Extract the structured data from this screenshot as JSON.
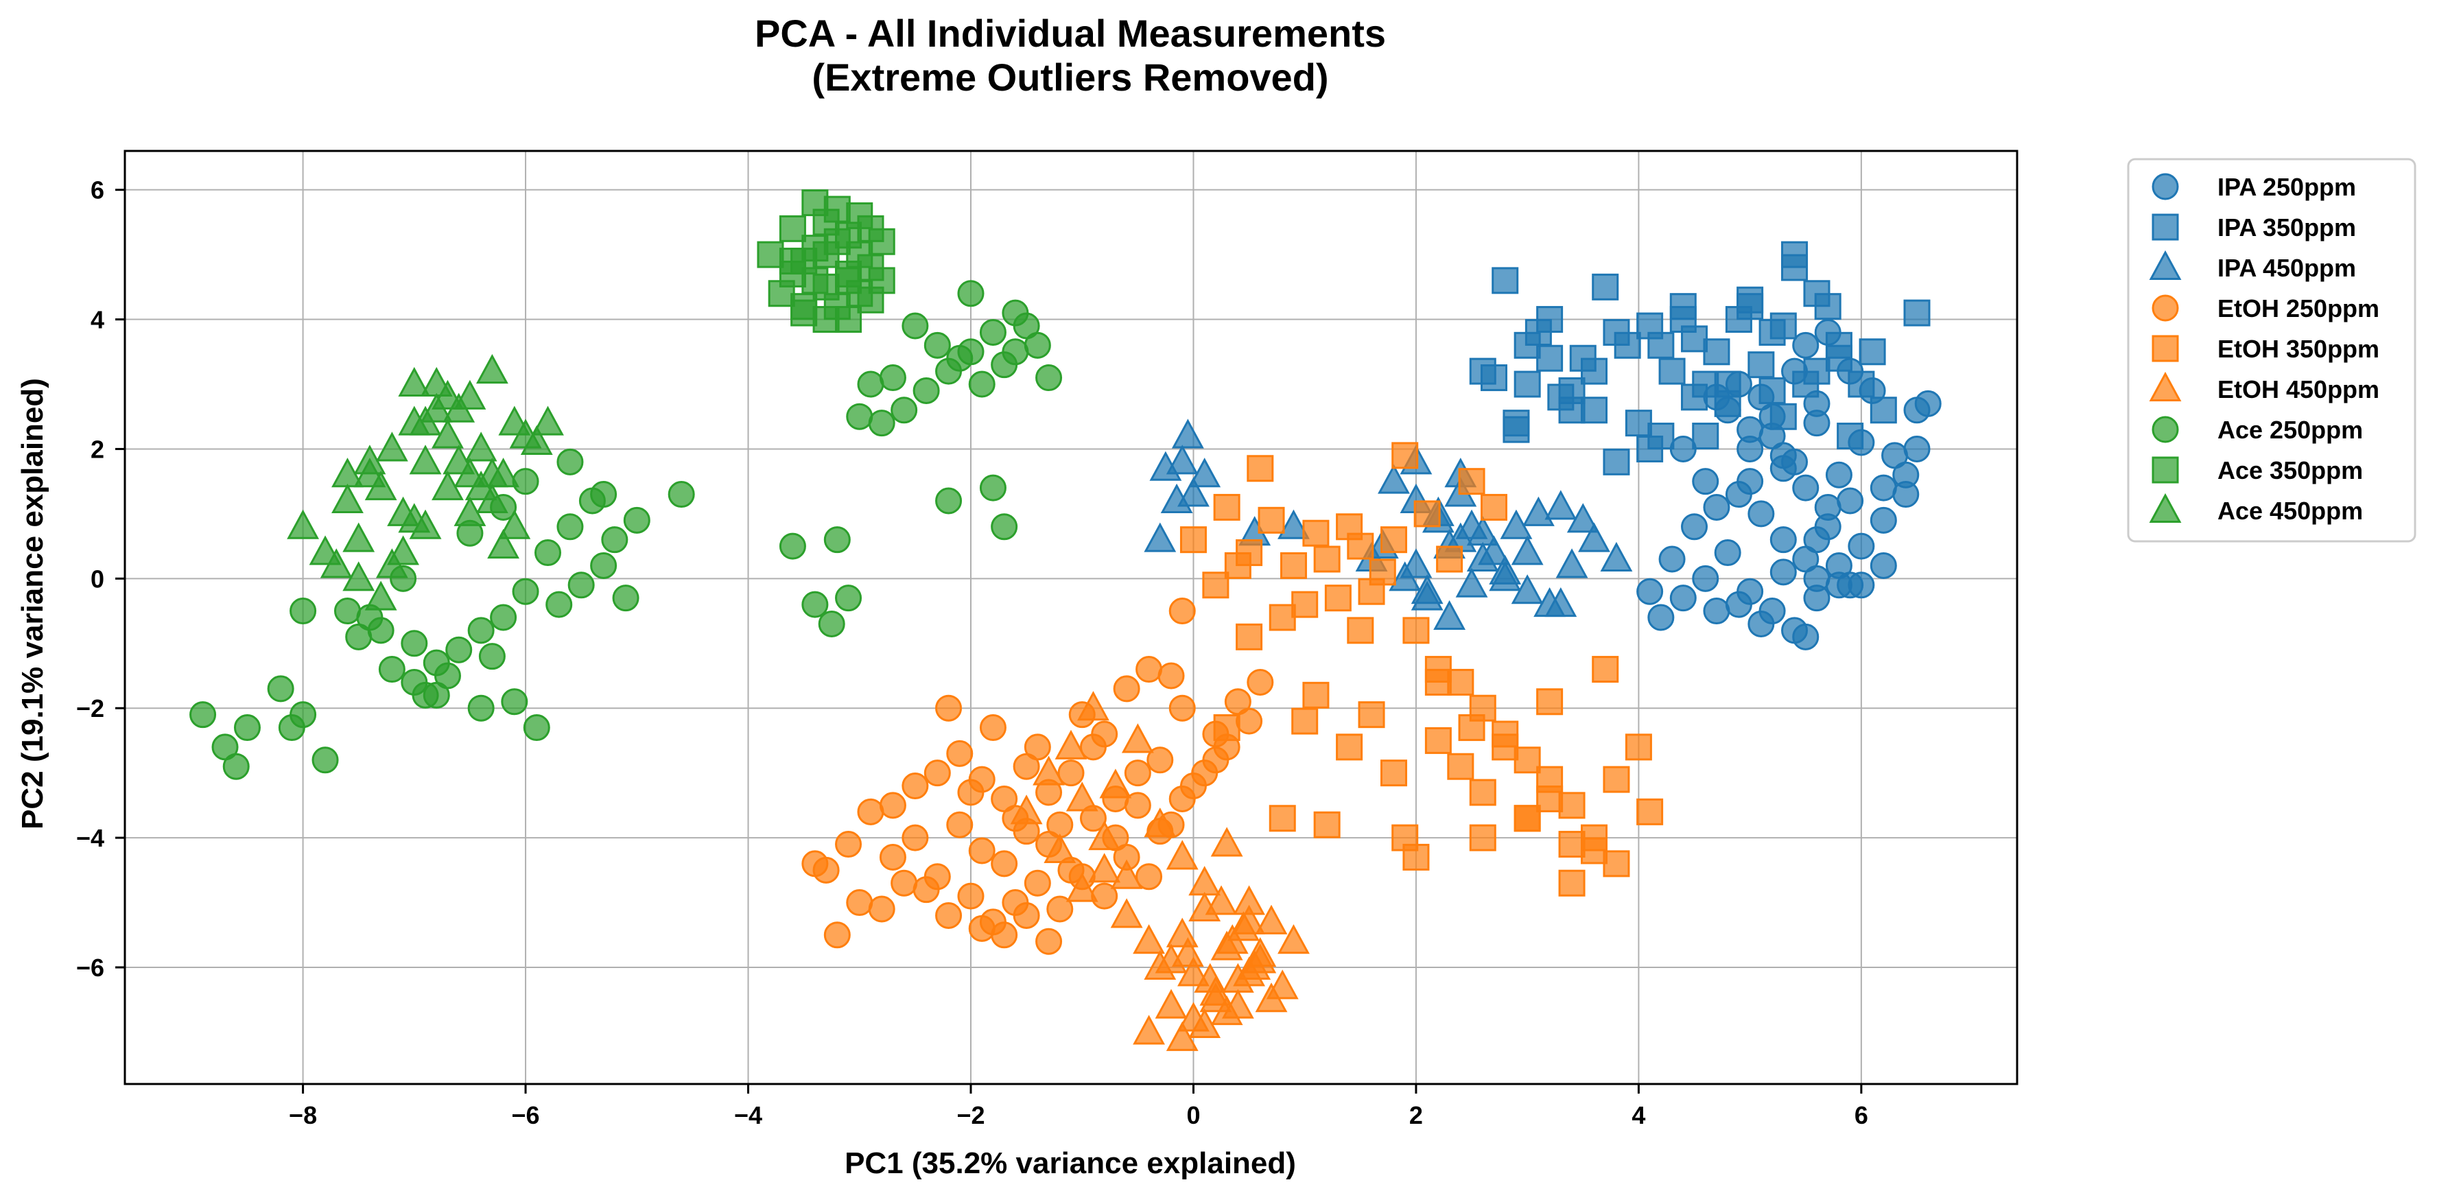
{
  "chart_data": {
    "type": "scatter",
    "title_line1": "PCA - All Individual Measurements",
    "title_line2": "(Extreme Outliers Removed)",
    "xlabel": "PC1 (35.2% variance explained)",
    "ylabel": "PC2 (19.1% variance explained)",
    "xlim": [
      -9.6,
      7.4
    ],
    "ylim": [
      -7.8,
      6.6
    ],
    "xticks": [
      -8,
      -6,
      -4,
      -2,
      0,
      2,
      4,
      6
    ],
    "yticks": [
      -6,
      -4,
      -2,
      0,
      2,
      4,
      6
    ],
    "grid": true,
    "legend_position": "outside-right",
    "colors": {
      "IPA": "#1f77b4",
      "EtOH": "#ff7f0e",
      "Ace": "#2ca02c"
    },
    "series": [
      {
        "name": "IPA 250ppm",
        "solvent": "IPA",
        "marker": "circle",
        "x": [
          5.0,
          5.2,
          5.4,
          5.6,
          5.8,
          6.0,
          5.1,
          5.3,
          5.5,
          5.7,
          4.9,
          5.9,
          6.2,
          6.4,
          6.5,
          4.6,
          4.4,
          4.2,
          4.1,
          4.3,
          4.5,
          4.7,
          4.8,
          5.0,
          5.2,
          5.4,
          5.6,
          5.8,
          6.0,
          6.2,
          5.3,
          5.5,
          5.7,
          5.1,
          4.9,
          5.4,
          5.6,
          5.2,
          5.0,
          4.8,
          5.5,
          5.7,
          5.9,
          6.1,
          6.3,
          4.6,
          4.4,
          5.3,
          5.8,
          6.0,
          5.1,
          5.5,
          4.7,
          4.9,
          5.6,
          6.6,
          6.5,
          6.4,
          6.2,
          5.9,
          5.6,
          5.3,
          5.0,
          4.7
        ],
        "y": [
          2.0,
          2.2,
          1.8,
          2.4,
          1.6,
          2.1,
          1.0,
          0.6,
          0.3,
          0.8,
          1.3,
          1.2,
          0.9,
          1.6,
          2.6,
          0.0,
          -0.3,
          -0.6,
          -0.2,
          0.3,
          0.8,
          1.1,
          0.4,
          -0.2,
          -0.5,
          -0.8,
          -0.3,
          -0.1,
          0.5,
          1.4,
          1.7,
          1.4,
          1.1,
          2.8,
          3.0,
          3.2,
          2.7,
          2.5,
          2.3,
          2.6,
          3.6,
          3.8,
          3.2,
          2.9,
          1.9,
          1.5,
          2.0,
          0.1,
          0.2,
          -0.1,
          -0.7,
          -0.9,
          -0.5,
          -0.4,
          0.0,
          2.7,
          2.0,
          1.3,
          0.2,
          -0.1,
          0.6,
          1.9,
          1.5,
          2.8
        ]
      },
      {
        "name": "IPA 350ppm",
        "solvent": "IPA",
        "marker": "square",
        "x": [
          2.6,
          2.8,
          3.0,
          3.2,
          3.4,
          3.6,
          3.8,
          4.0,
          4.2,
          4.4,
          4.6,
          4.8,
          5.0,
          5.2,
          5.4,
          5.6,
          5.8,
          6.0,
          6.2,
          6.5,
          2.9,
          3.1,
          3.3,
          3.5,
          3.7,
          3.9,
          4.1,
          4.3,
          4.5,
          4.7,
          4.9,
          5.1,
          5.3,
          5.5,
          5.7,
          5.9,
          3.6,
          3.8,
          4.2,
          4.6,
          5.0,
          5.4,
          5.8,
          2.7,
          3.0,
          3.4,
          4.1,
          4.5,
          5.2,
          5.6,
          6.1,
          5.3,
          4.8,
          4.4,
          3.2,
          2.9
        ],
        "y": [
          3.2,
          4.6,
          3.0,
          4.0,
          2.6,
          3.2,
          1.8,
          2.4,
          3.6,
          4.0,
          2.2,
          3.0,
          4.2,
          3.8,
          5.0,
          4.4,
          3.6,
          3.0,
          2.6,
          4.1,
          2.4,
          3.8,
          2.8,
          3.4,
          4.5,
          3.6,
          2.0,
          3.2,
          2.8,
          3.5,
          4.0,
          3.3,
          2.5,
          3.0,
          4.2,
          2.2,
          2.6,
          3.8,
          2.2,
          3.0,
          4.3,
          4.8,
          3.4,
          3.1,
          3.6,
          2.9,
          3.9,
          3.7,
          2.9,
          3.2,
          3.5,
          3.9,
          2.7,
          4.2,
          3.4,
          2.3
        ]
      },
      {
        "name": "IPA 450ppm",
        "solvent": "IPA",
        "marker": "triangle",
        "x": [
          -0.05,
          -0.1,
          0.0,
          0.1,
          -0.3,
          0.55,
          0.9,
          1.8,
          2.0,
          2.2,
          2.4,
          2.6,
          2.8,
          3.0,
          3.2,
          3.4,
          3.6,
          1.9,
          2.1,
          2.3,
          2.5,
          2.7,
          2.9,
          3.1,
          1.7,
          2.0,
          2.2,
          2.4,
          2.6,
          2.8,
          3.0,
          3.3,
          3.5,
          2.1,
          2.3,
          2.5,
          -0.25,
          -0.15,
          1.6,
          2.0,
          2.4,
          3.8,
          3.3
        ],
        "y": [
          2.2,
          1.8,
          1.3,
          1.6,
          0.6,
          0.7,
          0.8,
          1.5,
          1.2,
          0.9,
          0.6,
          0.3,
          0.1,
          -0.2,
          -0.4,
          0.2,
          0.6,
          0.0,
          -0.3,
          -0.6,
          -0.1,
          0.4,
          0.8,
          1.0,
          0.5,
          0.2,
          1.0,
          1.3,
          0.7,
          0.0,
          0.4,
          1.1,
          0.9,
          -0.2,
          0.5,
          0.8,
          1.7,
          1.2,
          0.3,
          1.8,
          1.6,
          0.3,
          -0.4
        ]
      },
      {
        "name": "EtOH 250ppm",
        "solvent": "EtOH",
        "marker": "circle",
        "x": [
          -3.3,
          -3.1,
          -2.9,
          -2.7,
          -2.5,
          -2.3,
          -2.1,
          -1.9,
          -1.7,
          -1.5,
          -1.3,
          -1.1,
          -0.9,
          -0.7,
          -0.5,
          -0.3,
          -0.1,
          0.1,
          0.3,
          0.5,
          -3.0,
          -2.8,
          -2.6,
          -2.4,
          -2.2,
          -2.0,
          -1.8,
          -1.6,
          -1.4,
          -1.2,
          -1.0,
          -0.8,
          -0.6,
          -0.4,
          -0.2,
          0.0,
          0.2,
          0.4,
          0.6,
          -2.7,
          -2.5,
          -2.3,
          -2.1,
          -1.9,
          -1.7,
          -1.5,
          -1.3,
          -1.1,
          -0.9,
          -0.7,
          -0.5,
          -0.3,
          -0.1,
          -2.2,
          -1.8,
          -1.4,
          -1.0,
          -0.6,
          -0.2,
          0.2,
          -1.9,
          -1.7,
          -1.5,
          -1.3,
          -3.4,
          -3.2,
          -2.0,
          -1.6,
          -1.2,
          -0.8,
          -0.4,
          -0.1
        ],
        "y": [
          -4.5,
          -4.1,
          -3.6,
          -4.3,
          -4.0,
          -4.6,
          -3.8,
          -4.2,
          -4.4,
          -3.9,
          -4.1,
          -4.5,
          -3.7,
          -4.0,
          -3.5,
          -3.9,
          -3.4,
          -3.0,
          -2.6,
          -2.2,
          -5.0,
          -5.1,
          -4.7,
          -4.8,
          -5.2,
          -4.9,
          -5.3,
          -5.0,
          -4.7,
          -5.1,
          -4.6,
          -4.9,
          -4.3,
          -4.6,
          -3.8,
          -3.2,
          -2.4,
          -1.9,
          -1.6,
          -3.5,
          -3.2,
          -3.0,
          -2.7,
          -3.1,
          -3.4,
          -2.9,
          -3.3,
          -3.0,
          -2.6,
          -3.4,
          -3.0,
          -2.8,
          -2.0,
          -2.0,
          -2.3,
          -2.6,
          -2.1,
          -1.7,
          -1.5,
          -2.8,
          -5.4,
          -5.5,
          -5.2,
          -5.6,
          -4.4,
          -5.5,
          -3.3,
          -3.7,
          -3.8,
          -2.4,
          -1.4,
          -0.5
        ],
        "name_note": ""
      },
      {
        "name": "EtOH 350ppm",
        "solvent": "EtOH",
        "marker": "square",
        "x": [
          0.0,
          0.3,
          0.5,
          0.7,
          0.9,
          1.1,
          1.3,
          1.5,
          1.7,
          1.9,
          2.1,
          2.3,
          2.5,
          2.7,
          0.2,
          0.4,
          0.6,
          0.8,
          1.0,
          1.2,
          1.4,
          1.6,
          1.8,
          2.0,
          2.2,
          2.4,
          2.6,
          2.8,
          3.0,
          3.2,
          3.4,
          3.6,
          3.8,
          4.0,
          1.0,
          1.4,
          1.8,
          2.2,
          2.6,
          3.0,
          3.4,
          3.8,
          4.1,
          2.4,
          2.8,
          3.2,
          3.6,
          2.0,
          2.6,
          3.0,
          3.4,
          0.8,
          1.2,
          1.6,
          0.3,
          1.9,
          2.2,
          2.5,
          3.2,
          3.7,
          1.5,
          1.1,
          0.5
        ],
        "y": [
          0.6,
          1.1,
          0.4,
          0.9,
          0.2,
          0.7,
          -0.3,
          0.5,
          0.1,
          1.9,
          1.0,
          0.3,
          1.5,
          1.1,
          -0.1,
          0.2,
          1.7,
          -0.6,
          -0.4,
          0.3,
          0.8,
          -0.2,
          0.6,
          -0.8,
          -1.4,
          -1.6,
          -2.0,
          -2.4,
          -2.8,
          -3.1,
          -3.5,
          -4.0,
          -4.4,
          -2.6,
          -2.2,
          -2.6,
          -3.0,
          -2.5,
          -3.3,
          -3.7,
          -4.1,
          -3.1,
          -3.6,
          -2.9,
          -2.6,
          -3.4,
          -4.2,
          -4.3,
          -4.0,
          -3.7,
          -4.7,
          -3.7,
          -3.8,
          -2.1,
          -2.3,
          -4.0,
          -1.6,
          -2.3,
          -1.9,
          -1.4,
          -0.8,
          -1.8,
          -0.9
        ],
        "name_note": ""
      },
      {
        "name": "EtOH 450ppm",
        "solvent": "EtOH",
        "marker": "triangle",
        "x": [
          -1.5,
          -1.3,
          -1.1,
          -0.9,
          -0.7,
          -0.5,
          -0.3,
          -0.1,
          0.1,
          0.3,
          0.5,
          0.7,
          0.9,
          -1.2,
          -1.0,
          -0.8,
          -0.6,
          -0.4,
          -0.2,
          0.0,
          0.2,
          0.4,
          0.6,
          0.8,
          -0.4,
          -0.2,
          0.0,
          0.2,
          0.4,
          0.6,
          -0.3,
          -0.1,
          0.1,
          0.3,
          0.5,
          0.7,
          -0.1,
          0.1,
          0.3,
          0.5,
          -0.6,
          -0.8,
          -1.0,
          0.25,
          0.45,
          -0.05,
          0.15,
          0.35,
          0.55
        ],
        "y": [
          -3.6,
          -3.0,
          -2.6,
          -2.0,
          -3.2,
          -2.5,
          -3.8,
          -4.3,
          -4.7,
          -4.1,
          -5.0,
          -5.3,
          -5.6,
          -4.2,
          -4.8,
          -4.5,
          -5.2,
          -5.6,
          -5.9,
          -6.1,
          -6.4,
          -6.6,
          -5.9,
          -6.3,
          -7.0,
          -6.6,
          -6.8,
          -6.5,
          -6.2,
          -5.8,
          -6.0,
          -5.5,
          -5.1,
          -5.7,
          -6.1,
          -6.5,
          -7.1,
          -6.9,
          -6.7,
          -5.3,
          -4.6,
          -4.0,
          -3.4,
          -5.0,
          -5.4,
          -5.8,
          -6.2,
          -5.6,
          -6.0
        ],
        "name_note": ""
      },
      {
        "name": "Ace 250ppm",
        "solvent": "Ace",
        "marker": "circle",
        "x": [
          -8.9,
          -8.7,
          -8.5,
          -8.2,
          -8.0,
          -7.8,
          -8.6,
          -8.1,
          -7.6,
          -7.3,
          -7.0,
          -6.8,
          -6.6,
          -6.4,
          -6.2,
          -6.0,
          -5.8,
          -5.6,
          -5.4,
          -5.2,
          -5.0,
          -4.6,
          -7.2,
          -6.9,
          -6.7,
          -6.3,
          -6.1,
          -5.9,
          -5.7,
          -5.5,
          -5.3,
          -5.1,
          -7.4,
          -7.1,
          -6.5,
          -6.2,
          -6.0,
          -5.6,
          -5.3,
          -8.0,
          -7.5,
          -7.0,
          -6.8,
          -6.4,
          -2.8,
          -2.6,
          -2.4,
          -2.2,
          -2.0,
          -1.8,
          -1.6,
          -1.4,
          -2.5,
          -2.3,
          -2.1,
          -1.9,
          -1.7,
          -3.0,
          -2.7,
          -2.9,
          -1.5,
          -1.3,
          -2.2,
          -1.8,
          -1.7,
          -3.6,
          -3.2,
          -3.4,
          -3.25,
          -3.1,
          -2.0,
          -1.6
        ],
        "y": [
          -2.1,
          -2.6,
          -2.3,
          -1.7,
          -2.1,
          -2.8,
          -2.9,
          -2.3,
          -0.5,
          -0.8,
          -1.0,
          -1.3,
          -1.1,
          -0.8,
          -0.6,
          -0.2,
          0.4,
          0.8,
          1.2,
          0.6,
          0.9,
          1.3,
          -1.4,
          -1.8,
          -1.5,
          -1.2,
          -1.9,
          -2.3,
          -0.4,
          -0.1,
          0.2,
          -0.3,
          -0.6,
          0.0,
          0.7,
          1.1,
          1.5,
          1.8,
          1.3,
          -0.5,
          -0.9,
          -1.6,
          -1.8,
          -2.0,
          2.4,
          2.6,
          2.9,
          3.2,
          3.5,
          3.8,
          4.1,
          3.6,
          3.9,
          3.6,
          3.4,
          3.0,
          3.3,
          2.5,
          3.1,
          3.0,
          3.9,
          3.1,
          1.2,
          1.4,
          0.8,
          0.5,
          0.6,
          -0.4,
          -0.7,
          -0.3,
          4.4,
          3.5
        ],
        "name_note": ""
      },
      {
        "name": "Ace 350ppm",
        "solvent": "Ace",
        "marker": "square",
        "x": [
          -3.8,
          -3.6,
          -3.5,
          -3.4,
          -3.3,
          -3.2,
          -3.1,
          -3.0,
          -2.9,
          -2.8,
          -3.7,
          -3.5,
          -3.3,
          -3.1,
          -2.9,
          -3.6,
          -3.4,
          -3.2,
          -3.0,
          -2.8,
          -3.5,
          -3.3,
          -3.1,
          -3.4,
          -3.2,
          -3.0,
          -3.6,
          -2.9,
          -3.3,
          -3.1
        ],
        "y": [
          5.0,
          5.4,
          4.2,
          5.8,
          4.5,
          5.2,
          4.0,
          5.6,
          4.8,
          5.2,
          4.4,
          4.9,
          4.0,
          4.7,
          4.3,
          4.7,
          5.1,
          5.7,
          5.0,
          4.6,
          4.1,
          5.5,
          5.3,
          4.6,
          4.2,
          4.4,
          4.9,
          5.4,
          5.0,
          4.6
        ],
        "name_note": ""
      },
      {
        "name": "Ace 450ppm",
        "solvent": "Ace",
        "marker": "triangle",
        "x": [
          -8.0,
          -7.8,
          -7.6,
          -7.4,
          -7.2,
          -7.0,
          -6.8,
          -6.6,
          -6.4,
          -6.2,
          -6.0,
          -5.8,
          -7.5,
          -7.3,
          -7.1,
          -6.9,
          -6.7,
          -6.5,
          -6.3,
          -6.1,
          -7.7,
          -7.5,
          -7.3,
          -7.1,
          -6.9,
          -6.7,
          -6.5,
          -6.3,
          -7.0,
          -6.8,
          -6.6,
          -6.4,
          -7.4,
          -7.2,
          -6.9,
          -6.7,
          -6.5,
          -6.3,
          -6.1,
          -5.9,
          -7.6,
          -7.0,
          -6.2
        ],
        "y": [
          0.8,
          0.4,
          1.2,
          1.8,
          0.2,
          2.4,
          3.0,
          2.6,
          2.0,
          1.6,
          2.2,
          2.4,
          0.6,
          1.4,
          1.0,
          1.8,
          2.2,
          1.6,
          1.2,
          0.8,
          0.2,
          0.0,
          -0.3,
          0.4,
          0.8,
          1.4,
          2.8,
          3.2,
          3.0,
          2.6,
          1.8,
          1.4,
          1.6,
          2.0,
          2.4,
          2.8,
          1.0,
          1.6,
          2.4,
          2.1,
          1.6,
          0.9,
          0.5
        ],
        "name_note": ""
      }
    ]
  }
}
